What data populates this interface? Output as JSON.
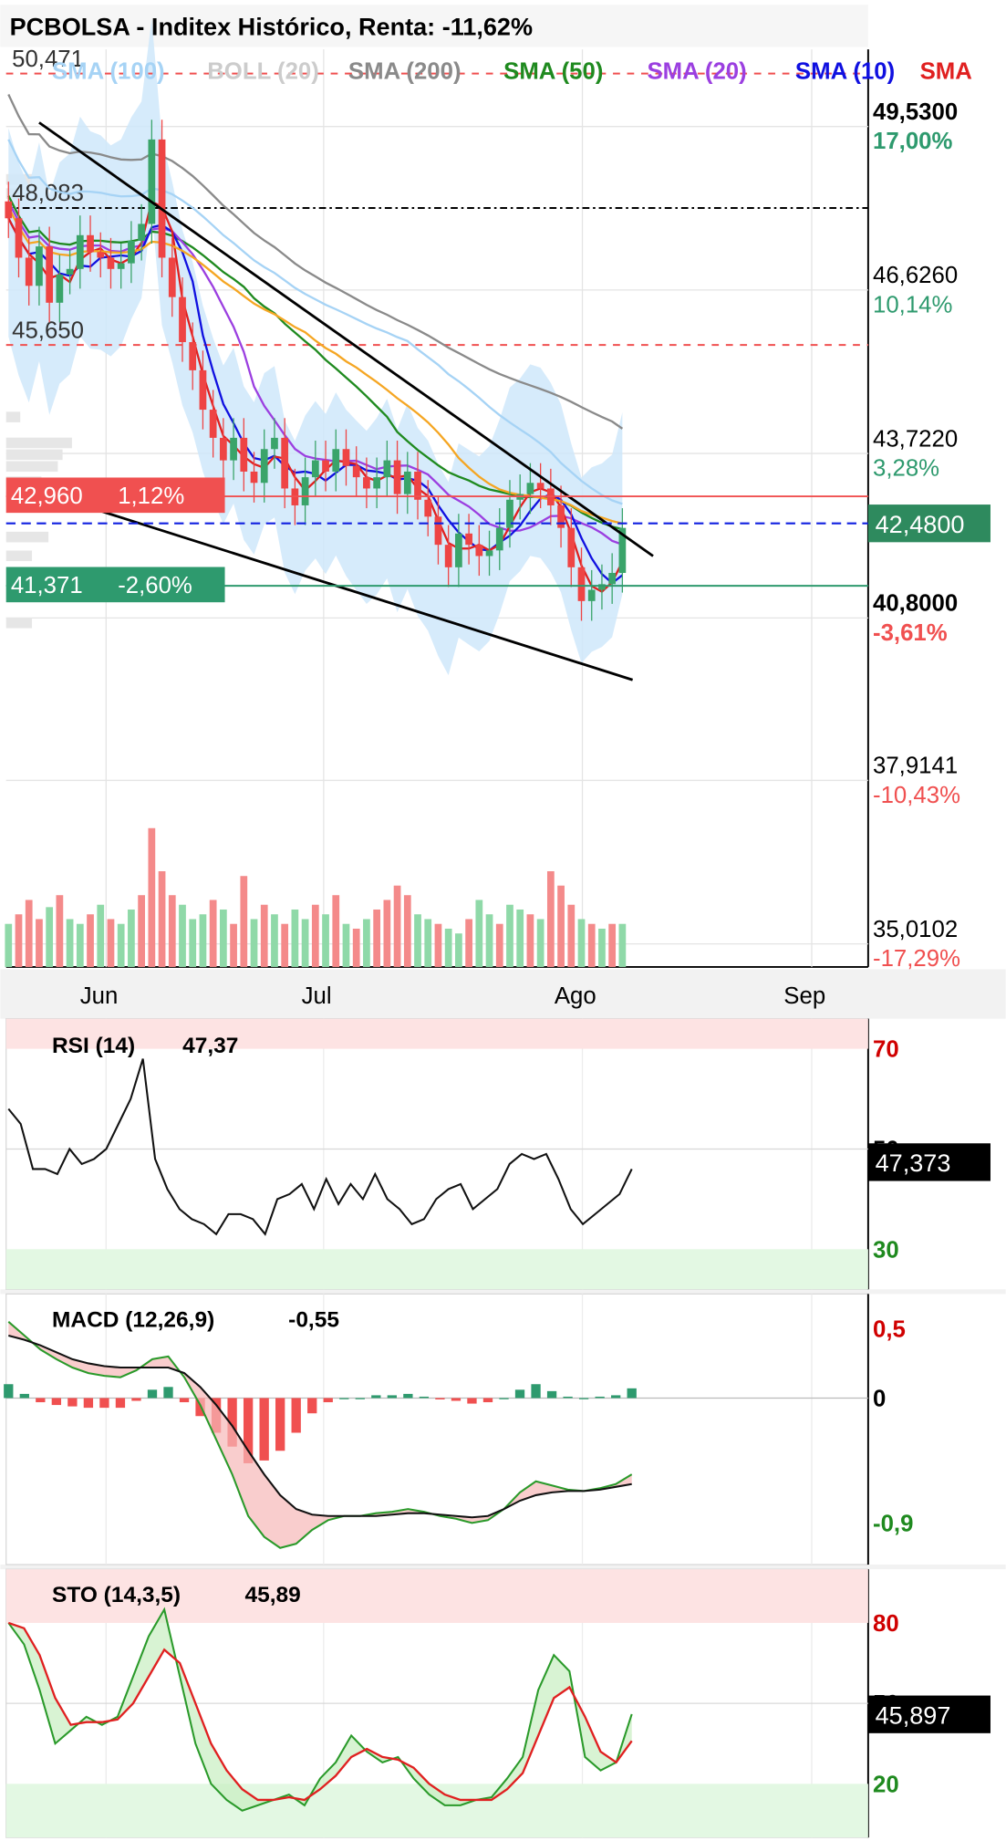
{
  "header": {
    "title": "PCBOLSA - Inditex Histórico, Renta: -11,62%",
    "indicators": [
      {
        "label": "SMA (100)",
        "color": "#a6d3f5"
      },
      {
        "label": "BOLL (20)",
        "color": "#cccccc"
      },
      {
        "label": "SMA (200)",
        "color": "#8a8a8a"
      },
      {
        "label": "SMA (50)",
        "color": "#1f8a1f"
      },
      {
        "label": "SMA (20)",
        "color": "#9b3fe0"
      },
      {
        "label": "SMA (10)",
        "color": "#1010e0"
      },
      {
        "label": "SMA",
        "color": "#e02020"
      }
    ]
  },
  "chart_data": [
    {
      "type": "candlestick",
      "title": "PCBOLSA - Inditex Histórico, Renta: -11,62%",
      "x_ticks": [
        "Jun",
        "Jul",
        "Ago",
        "Sep"
      ],
      "price_axis_labels": [
        {
          "value": 49.53,
          "label": "49,5300",
          "pct": "17,00%"
        },
        {
          "value": 46.626,
          "label": "46,6260",
          "pct": "10,14%"
        },
        {
          "value": 43.722,
          "label": "43,7220",
          "pct": "3,28%"
        },
        {
          "value": 40.8,
          "label": "40,8000",
          "pct": "-3,61%"
        },
        {
          "value": 37.9141,
          "label": "37,9141",
          "pct": "-10,43%"
        },
        {
          "value": 35.0102,
          "label": "35,0102",
          "pct": "-17,29%"
        }
      ],
      "levels": [
        {
          "label": "50,471",
          "value": 50.471
        },
        {
          "label": "48,083",
          "value": 48.083
        },
        {
          "label": "45,650",
          "value": 45.65
        }
      ],
      "markers": [
        {
          "label": "42,960",
          "pct": "1,12%",
          "value": 42.96,
          "color": "#f05050"
        },
        {
          "label": "41,371",
          "pct": "-2,60%",
          "value": 41.371,
          "color": "#2e9a6e"
        }
      ],
      "last_price": "42,4800",
      "last_value": 42.48,
      "closes": [
        47.9,
        47.2,
        46.7,
        47.4,
        46.4,
        46.9,
        47.0,
        47.6,
        47.3,
        47.2,
        47.0,
        47.1,
        47.5,
        47.8,
        49.3,
        47.2,
        46.5,
        45.7,
        45.2,
        44.5,
        44.0,
        43.6,
        44.0,
        43.4,
        43.2,
        43.8,
        44.0,
        43.1,
        42.8,
        43.3,
        43.6,
        43.4,
        43.8,
        43.5,
        43.3,
        43.1,
        43.3,
        43.6,
        43.0,
        43.4,
        42.9,
        42.6,
        42.1,
        41.7,
        42.3,
        42.1,
        41.9,
        42.0,
        42.4,
        42.9,
        43.0,
        43.2,
        43.1,
        42.8,
        42.4,
        41.7,
        41.1,
        41.3,
        41.4,
        41.6,
        42.4
      ],
      "volumes": [
        18,
        22,
        28,
        20,
        25,
        30,
        20,
        18,
        22,
        26,
        20,
        18,
        24,
        30,
        58,
        40,
        30,
        26,
        20,
        22,
        28,
        24,
        18,
        38,
        20,
        26,
        22,
        18,
        24,
        20,
        26,
        22,
        30,
        18,
        16,
        20,
        24,
        28,
        34,
        30,
        22,
        20,
        18,
        16,
        14,
        20,
        28,
        22,
        18,
        26,
        24,
        22,
        20,
        40,
        34,
        26,
        20,
        18,
        16,
        18,
        18
      ],
      "volume_colors": "GRRRGRGGRGRGGRRRRGGGRGRRGRGRGGRGRGRGRRRRGGRGGRGGRGGRGRRRGRGRG",
      "trendlines": [
        {
          "from": [
            3,
            49.6
          ],
          "to": [
            63,
            41.9
          ]
        },
        {
          "from": [
            9,
            42.7
          ],
          "to": [
            61,
            39.7
          ]
        }
      ]
    },
    {
      "type": "line",
      "name": "RSI",
      "label": "RSI (14)",
      "value_label": "47,37",
      "current_box": "47,373",
      "axis_labels": [
        {
          "value": 70,
          "label": "70"
        },
        {
          "value": 50,
          "label": "50"
        },
        {
          "value": 30,
          "label": "30"
        }
      ],
      "values": [
        58,
        55,
        46,
        46,
        45,
        50,
        47,
        48,
        50,
        55,
        60,
        68,
        48,
        42,
        38,
        36,
        35,
        33,
        37,
        37,
        36,
        33,
        40,
        41,
        43,
        38,
        44,
        39,
        43,
        40,
        45,
        40,
        38,
        35,
        36,
        40,
        42,
        43,
        38,
        40,
        42,
        47,
        49,
        48,
        49,
        44,
        38,
        35,
        37,
        39,
        41,
        46
      ]
    },
    {
      "type": "line",
      "name": "MACD",
      "label": "MACD (12,26,9)",
      "value_label": "-0,55",
      "axis_labels": [
        {
          "value": 0.5,
          "label": "0,5"
        },
        {
          "value": 0,
          "label": "0"
        },
        {
          "value": -0.9,
          "label": "-0,9"
        }
      ],
      "macd": [
        0.55,
        0.45,
        0.35,
        0.28,
        0.22,
        0.18,
        0.16,
        0.15,
        0.2,
        0.28,
        0.3,
        0.15,
        -0.05,
        -0.3,
        -0.55,
        -0.85,
        -1.0,
        -1.08,
        -1.05,
        -0.95,
        -0.88,
        -0.85,
        -0.85,
        -0.83,
        -0.82,
        -0.8,
        -0.82,
        -0.85,
        -0.87,
        -0.9,
        -0.88,
        -0.8,
        -0.68,
        -0.6,
        -0.63,
        -0.66,
        -0.67,
        -0.65,
        -0.62,
        -0.55
      ],
      "signal": [
        0.45,
        0.42,
        0.38,
        0.33,
        0.28,
        0.25,
        0.23,
        0.22,
        0.22,
        0.22,
        0.22,
        0.18,
        0.08,
        -0.05,
        -0.2,
        -0.38,
        -0.55,
        -0.7,
        -0.8,
        -0.84,
        -0.85,
        -0.85,
        -0.85,
        -0.85,
        -0.84,
        -0.83,
        -0.83,
        -0.84,
        -0.85,
        -0.86,
        -0.85,
        -0.8,
        -0.74,
        -0.7,
        -0.68,
        -0.67,
        -0.67,
        -0.66,
        -0.64,
        -0.62
      ],
      "histogram": [
        0.1,
        0.03,
        -0.03,
        -0.05,
        -0.06,
        -0.07,
        -0.07,
        -0.07,
        -0.02,
        0.06,
        0.08,
        -0.03,
        -0.13,
        -0.25,
        -0.35,
        -0.47,
        -0.45,
        -0.38,
        -0.25,
        -0.11,
        -0.03,
        0,
        0,
        0.02,
        0.02,
        0.03,
        0.01,
        -0.01,
        -0.02,
        -0.04,
        -0.03,
        0,
        0.06,
        0.1,
        0.05,
        0.01,
        0,
        0.01,
        0.02,
        0.07
      ]
    },
    {
      "type": "line",
      "name": "STO",
      "label": "STO (14,3,5)",
      "value_label": "45,89",
      "current_box": "45,897",
      "axis_labels": [
        {
          "value": 80,
          "label": "80"
        },
        {
          "value": 50,
          "label": "50"
        },
        {
          "value": 20,
          "label": "20"
        }
      ],
      "k": [
        80,
        72,
        55,
        35,
        40,
        45,
        42,
        45,
        60,
        75,
        85,
        60,
        35,
        20,
        14,
        10,
        12,
        14,
        16,
        12,
        22,
        28,
        38,
        32,
        28,
        30,
        22,
        16,
        12,
        12,
        14,
        15,
        22,
        30,
        55,
        68,
        62,
        30,
        25,
        28,
        46
      ],
      "d": [
        80,
        78,
        68,
        52,
        42,
        43,
        43,
        44,
        50,
        60,
        70,
        65,
        50,
        35,
        25,
        18,
        14,
        14,
        15,
        14,
        18,
        23,
        30,
        33,
        30,
        29,
        26,
        20,
        16,
        14,
        14,
        14,
        18,
        24,
        38,
        52,
        56,
        45,
        32,
        28,
        36
      ]
    }
  ]
}
